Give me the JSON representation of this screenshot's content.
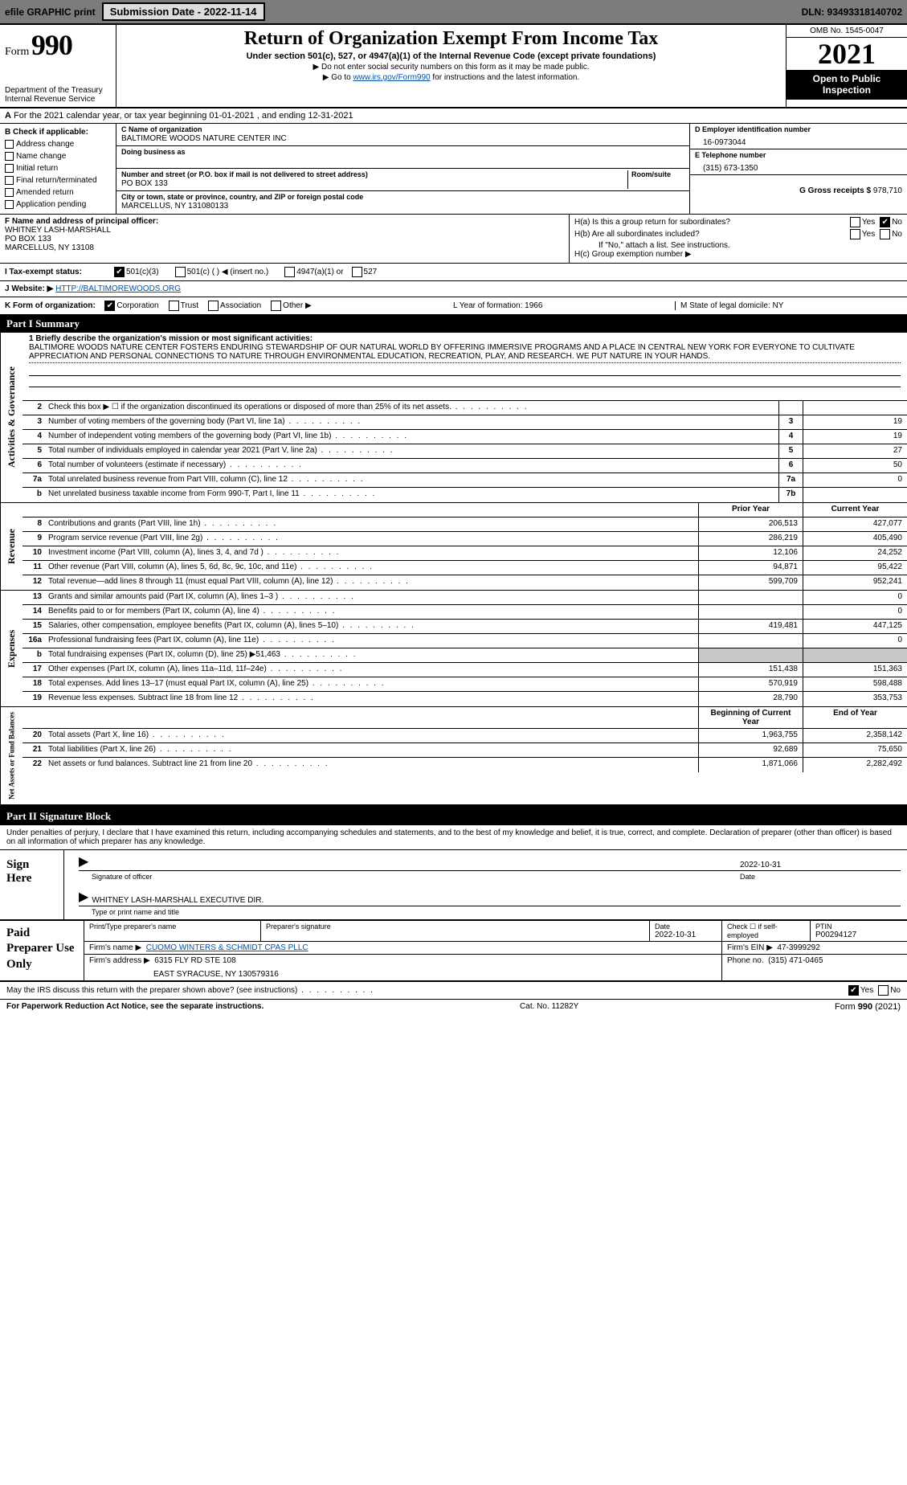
{
  "topbar": {
    "efile": "efile GRAPHIC print",
    "submission": "Submission Date - 2022-11-14",
    "dln": "DLN: 93493318140702"
  },
  "header": {
    "form_label": "Form",
    "form_num": "990",
    "title": "Return of Organization Exempt From Income Tax",
    "sub": "Under section 501(c), 527, or 4947(a)(1) of the Internal Revenue Code (except private foundations)",
    "note1": "Do not enter social security numbers on this form as it may be made public.",
    "note2_pre": "Go to ",
    "note2_link": "www.irs.gov/Form990",
    "note2_post": " for instructions and the latest information.",
    "dept": "Department of the Treasury",
    "irs": "Internal Revenue Service",
    "omb": "OMB No. 1545-0047",
    "year": "2021",
    "open": "Open to Public Inspection"
  },
  "row_a": {
    "label_a": "A",
    "text": "For the 2021 calendar year, or tax year beginning 01-01-2021   , and ending 12-31-2021"
  },
  "col_b": {
    "hdr": "B Check if applicable:",
    "opts": [
      "Address change",
      "Name change",
      "Initial return",
      "Final return/terminated",
      "Amended return",
      "Application pending"
    ]
  },
  "col_c": {
    "name_label": "C Name of organization",
    "name": "BALTIMORE WOODS NATURE CENTER INC",
    "dba_label": "Doing business as",
    "dba": "",
    "street_label": "Number and street (or P.O. box if mail is not delivered to street address)",
    "room_label": "Room/suite",
    "street": "PO BOX 133",
    "city_label": "City or town, state or province, country, and ZIP or foreign postal code",
    "city": "MARCELLUS, NY  131080133"
  },
  "col_d": {
    "ein_label": "D Employer identification number",
    "ein": "16-0973044",
    "phone_label": "E Telephone number",
    "phone": "(315) 673-1350",
    "gross_label": "G Gross receipts $",
    "gross": "978,710"
  },
  "row_f": {
    "label": "F Name and address of principal officer:",
    "name": "WHITNEY LASH-MARSHALL",
    "addr1": "PO BOX 133",
    "addr2": "MARCELLUS, NY  13108"
  },
  "row_h": {
    "a_label": "H(a)  Is this a group return for subordinates?",
    "b_label": "H(b)  Are all subordinates included?",
    "b_note": "If \"No,\" attach a list. See instructions.",
    "c_label": "H(c)  Group exemption number ▶"
  },
  "row_i": {
    "label": "I  Tax-exempt status:",
    "opt1": "501(c)(3)",
    "opt2": "501(c) (  ) ◀ (insert no.)",
    "opt3": "4947(a)(1) or",
    "opt4": "527"
  },
  "row_j": {
    "label": "J  Website: ▶",
    "val": "HTTP://BALTIMOREWOODS.ORG"
  },
  "row_k": {
    "label": "K Form of organization:",
    "opts": [
      "Corporation",
      "Trust",
      "Association",
      "Other ▶"
    ]
  },
  "row_lm": {
    "l": "L Year of formation: 1966",
    "m": "M State of legal domicile: NY"
  },
  "part1": {
    "hdr": "Part I    Summary",
    "q1_label": "1  Briefly describe the organization's mission or most significant activities:",
    "mission": "BALTIMORE WOODS NATURE CENTER FOSTERS ENDURING STEWARDSHIP OF OUR NATURAL WORLD BY OFFERING IMMERSIVE PROGRAMS AND A PLACE IN CENTRAL NEW YORK FOR EVERYONE TO CULTIVATE APPRECIATION AND PERSONAL CONNECTIONS TO NATURE THROUGH ENVIRONMENTAL EDUCATION, RECREATION, PLAY, AND RESEARCH. WE PUT NATURE IN YOUR HANDS.",
    "tabs": {
      "gov": "Activities & Governance",
      "rev": "Revenue",
      "exp": "Expenses",
      "net": "Net Assets or Fund Balances"
    },
    "gov_rows": [
      {
        "n": "2",
        "label": "Check this box ▶ ☐  if the organization discontinued its operations or disposed of more than 25% of its net assets.",
        "box": "",
        "v1": "",
        "v2": ""
      },
      {
        "n": "3",
        "label": "Number of voting members of the governing body (Part VI, line 1a)",
        "box": "3",
        "v1": "",
        "v2": "19"
      },
      {
        "n": "4",
        "label": "Number of independent voting members of the governing body (Part VI, line 1b)",
        "box": "4",
        "v1": "",
        "v2": "19"
      },
      {
        "n": "5",
        "label": "Total number of individuals employed in calendar year 2021 (Part V, line 2a)",
        "box": "5",
        "v1": "",
        "v2": "27"
      },
      {
        "n": "6",
        "label": "Total number of volunteers (estimate if necessary)",
        "box": "6",
        "v1": "",
        "v2": "50"
      },
      {
        "n": "7a",
        "label": "Total unrelated business revenue from Part VIII, column (C), line 12",
        "box": "7a",
        "v1": "",
        "v2": "0"
      },
      {
        "n": "b",
        "label": "Net unrelated business taxable income from Form 990-T, Part I, line 11",
        "box": "7b",
        "v1": "",
        "v2": ""
      }
    ],
    "col_hdrs": {
      "prior": "Prior Year",
      "current": "Current Year"
    },
    "rev_rows": [
      {
        "n": "8",
        "label": "Contributions and grants (Part VIII, line 1h)",
        "v1": "206,513",
        "v2": "427,077"
      },
      {
        "n": "9",
        "label": "Program service revenue (Part VIII, line 2g)",
        "v1": "286,219",
        "v2": "405,490"
      },
      {
        "n": "10",
        "label": "Investment income (Part VIII, column (A), lines 3, 4, and 7d )",
        "v1": "12,106",
        "v2": "24,252"
      },
      {
        "n": "11",
        "label": "Other revenue (Part VIII, column (A), lines 5, 6d, 8c, 9c, 10c, and 11e)",
        "v1": "94,871",
        "v2": "95,422"
      },
      {
        "n": "12",
        "label": "Total revenue—add lines 8 through 11 (must equal Part VIII, column (A), line 12)",
        "v1": "599,709",
        "v2": "952,241"
      }
    ],
    "exp_rows": [
      {
        "n": "13",
        "label": "Grants and similar amounts paid (Part IX, column (A), lines 1–3 )",
        "v1": "",
        "v2": "0"
      },
      {
        "n": "14",
        "label": "Benefits paid to or for members (Part IX, column (A), line 4)",
        "v1": "",
        "v2": "0"
      },
      {
        "n": "15",
        "label": "Salaries, other compensation, employee benefits (Part IX, column (A), lines 5–10)",
        "v1": "419,481",
        "v2": "447,125"
      },
      {
        "n": "16a",
        "label": "Professional fundraising fees (Part IX, column (A), line 11e)",
        "v1": "",
        "v2": "0"
      },
      {
        "n": "b",
        "label": "Total fundraising expenses (Part IX, column (D), line 25) ▶51,463",
        "v1": "shaded",
        "v2": "shaded"
      },
      {
        "n": "17",
        "label": "Other expenses (Part IX, column (A), lines 11a–11d, 11f–24e)",
        "v1": "151,438",
        "v2": "151,363"
      },
      {
        "n": "18",
        "label": "Total expenses. Add lines 13–17 (must equal Part IX, column (A), line 25)",
        "v1": "570,919",
        "v2": "598,488"
      },
      {
        "n": "19",
        "label": "Revenue less expenses. Subtract line 18 from line 12",
        "v1": "28,790",
        "v2": "353,753"
      }
    ],
    "net_hdrs": {
      "begin": "Beginning of Current Year",
      "end": "End of Year"
    },
    "net_rows": [
      {
        "n": "20",
        "label": "Total assets (Part X, line 16)",
        "v1": "1,963,755",
        "v2": "2,358,142"
      },
      {
        "n": "21",
        "label": "Total liabilities (Part X, line 26)",
        "v1": "92,689",
        "v2": "75,650"
      },
      {
        "n": "22",
        "label": "Net assets or fund balances. Subtract line 21 from line 20",
        "v1": "1,871,066",
        "v2": "2,282,492"
      }
    ]
  },
  "part2": {
    "hdr": "Part II    Signature Block",
    "disclaimer": "Under penalties of perjury, I declare that I have examined this return, including accompanying schedules and statements, and to the best of my knowledge and belief, it is true, correct, and complete. Declaration of preparer (other than officer) is based on all information of which preparer has any knowledge.",
    "sign_here": "Sign Here",
    "sig_date": "2022-10-31",
    "sig_officer_label": "Signature of officer",
    "date_label": "Date",
    "officer_name": "WHITNEY LASH-MARSHALL  EXECUTIVE DIR.",
    "officer_name_label": "Type or print name and title",
    "paid": "Paid Preparer Use Only",
    "prep_name_label": "Print/Type preparer's name",
    "prep_sig_label": "Preparer's signature",
    "prep_date_label": "Date",
    "prep_date": "2022-10-31",
    "check_if": "Check ☐ if self-employed",
    "ptin_label": "PTIN",
    "ptin": "P00294127",
    "firm_name_label": "Firm's name    ▶",
    "firm_name": "CUOMO WINTERS & SCHMIDT CPAS PLLC",
    "firm_ein_label": "Firm's EIN ▶",
    "firm_ein": "47-3999292",
    "firm_addr_label": "Firm's address ▶",
    "firm_addr1": "6315 FLY RD STE 108",
    "firm_addr2": "EAST SYRACUSE, NY  130579316",
    "firm_phone_label": "Phone no.",
    "firm_phone": "(315) 471-0465",
    "discuss": "May the IRS discuss this return with the preparer shown above? (see instructions)",
    "paperwork": "For Paperwork Reduction Act Notice, see the separate instructions.",
    "cat": "Cat. No. 11282Y",
    "form_foot": "Form 990 (2021)"
  }
}
